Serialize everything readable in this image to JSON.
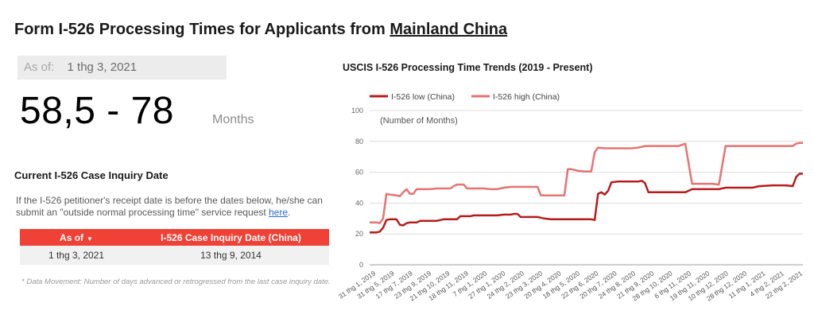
{
  "page": {
    "title_prefix": "Form I-526 Processing Times for Applicants from ",
    "title_highlight": "Mainland China"
  },
  "summary": {
    "as_of_label": "As of:",
    "as_of_value": "1 thg 3, 2021",
    "range": "58,5 - 78",
    "unit": "Months"
  },
  "inquiry": {
    "title": "Current I-526 Case Inquiry Date",
    "desc_text": "If the I-526 petitioner's receipt date is before the dates below, he/she can submit an \"outside normal processing time\" service request ",
    "link_text": "here",
    "desc_end": ".",
    "headers": [
      "As of",
      "I-526 Case Inquiry Date (China)"
    ],
    "rows": [
      [
        "1 thg 3, 2021",
        "13 thg 9, 2014"
      ]
    ],
    "footnote": "* Data Movement: Number of days advanced or retrogressed from the last case inquiry date."
  },
  "chart_data": {
    "type": "line",
    "title": "USCIS I-526 Processing Time Trends (2019 - Present)",
    "ylabel": "(Number of Months)",
    "ylim": [
      0,
      100
    ],
    "yticks": [
      0,
      20,
      40,
      60,
      80,
      100
    ],
    "grid": true,
    "legend_position": "top",
    "x_tick_labels": [
      "31 thg 1, 2019",
      "31 thg 5, 2019",
      "17 thg 7, 2019",
      "23 thg 9, 2019",
      "21 thg 10, 2019",
      "18 thg 11, 2019",
      "7 thg 1, 2020",
      "27 thg 1, 2020",
      "24 thg 2, 2020",
      "23 thg 3, 2020",
      "20 thg 4, 2020",
      "18 thg 5, 2020",
      "22 thg 6, 2020",
      "20 thg 7, 2020",
      "24 thg 8, 2020",
      "21 thg 9, 2020",
      "28 thg 10, 2020",
      "6 thg 11, 2020",
      "19 thg 11, 2020",
      "10 thg 12, 2020",
      "28 thg 12, 2020",
      "11 thg 1, 2021",
      "4 thg 2, 2021",
      "22 thg 2, 2021"
    ],
    "series": [
      {
        "name": "I-526 low (China)",
        "color": "#b71c1c",
        "points": [
          [
            0,
            21
          ],
          [
            1,
            21
          ],
          [
            1.5,
            21.5
          ],
          [
            2,
            24
          ],
          [
            2.5,
            29
          ],
          [
            3,
            29.5
          ],
          [
            4,
            29.5
          ],
          [
            4.5,
            26
          ],
          [
            5,
            25.5
          ],
          [
            5.5,
            27
          ],
          [
            6,
            27.5
          ],
          [
            7,
            27.5
          ],
          [
            7.5,
            28.5
          ],
          [
            9,
            28.5
          ],
          [
            10,
            28.5
          ],
          [
            11,
            29.5
          ],
          [
            12,
            29.5
          ],
          [
            13,
            29.5
          ],
          [
            13.5,
            31.5
          ],
          [
            15,
            31.5
          ],
          [
            15.5,
            32
          ],
          [
            17,
            32
          ],
          [
            19,
            32
          ],
          [
            20,
            32.5
          ],
          [
            21,
            32.5
          ],
          [
            21.5,
            33
          ],
          [
            22,
            33
          ],
          [
            22.5,
            31
          ],
          [
            24,
            31
          ],
          [
            25,
            31
          ],
          [
            26,
            30
          ],
          [
            27,
            29.5
          ],
          [
            29,
            29.5
          ],
          [
            30,
            29.5
          ],
          [
            31,
            29.5
          ],
          [
            32,
            29.5
          ],
          [
            33,
            29.5
          ],
          [
            33.5,
            29
          ],
          [
            34,
            46
          ],
          [
            34.5,
            47
          ],
          [
            35,
            45.5
          ],
          [
            35.5,
            48
          ],
          [
            36,
            53.5
          ],
          [
            37,
            54
          ],
          [
            39,
            54
          ],
          [
            40,
            54
          ],
          [
            40.5,
            54.5
          ],
          [
            41,
            53
          ],
          [
            41.5,
            47
          ],
          [
            42,
            47
          ],
          [
            43,
            47
          ],
          [
            44,
            47
          ],
          [
            46,
            47
          ],
          [
            47,
            47
          ],
          [
            47.5,
            48
          ],
          [
            48,
            49
          ],
          [
            50,
            49
          ],
          [
            52,
            49
          ],
          [
            53,
            50
          ],
          [
            56,
            50
          ],
          [
            57,
            50
          ],
          [
            58,
            51
          ],
          [
            60,
            51.5
          ],
          [
            62,
            51.5
          ],
          [
            63,
            51
          ],
          [
            63.5,
            57
          ],
          [
            64,
            59
          ],
          [
            64.5,
            59
          ]
        ]
      },
      {
        "name": "I-526 high (China)",
        "color": "#e57373",
        "points": [
          [
            0,
            27.5
          ],
          [
            1,
            27.5
          ],
          [
            1.5,
            27
          ],
          [
            2,
            30
          ],
          [
            2.5,
            46
          ],
          [
            3,
            45.5
          ],
          [
            4,
            45
          ],
          [
            4.5,
            44.5
          ],
          [
            5,
            47
          ],
          [
            5.5,
            49
          ],
          [
            6,
            46
          ],
          [
            6.5,
            46
          ],
          [
            7,
            49
          ],
          [
            8,
            49
          ],
          [
            9,
            49
          ],
          [
            10,
            49.5
          ],
          [
            11,
            49.5
          ],
          [
            12,
            49.5
          ],
          [
            12.5,
            51
          ],
          [
            13,
            52
          ],
          [
            14,
            52
          ],
          [
            14.5,
            49.5
          ],
          [
            15,
            49.5
          ],
          [
            16,
            49.5
          ],
          [
            17,
            49.5
          ],
          [
            18,
            49
          ],
          [
            19,
            49
          ],
          [
            20,
            50
          ],
          [
            21,
            50.5
          ],
          [
            22,
            50.5
          ],
          [
            24,
            50.5
          ],
          [
            25,
            50.5
          ],
          [
            25.5,
            45
          ],
          [
            26,
            45
          ],
          [
            28,
            45
          ],
          [
            29,
            45
          ],
          [
            29.5,
            62
          ],
          [
            30,
            62
          ],
          [
            31,
            61
          ],
          [
            32,
            60.5
          ],
          [
            33,
            60.5
          ],
          [
            33.5,
            73
          ],
          [
            34,
            76
          ],
          [
            35,
            75.5
          ],
          [
            36,
            75.5
          ],
          [
            38,
            75.5
          ],
          [
            39,
            75.5
          ],
          [
            40,
            76
          ],
          [
            41,
            77
          ],
          [
            43,
            77
          ],
          [
            46,
            77
          ],
          [
            47,
            78.5
          ],
          [
            48,
            52.5
          ],
          [
            49,
            52.5
          ],
          [
            50,
            52.5
          ],
          [
            51,
            52.5
          ],
          [
            52,
            52
          ],
          [
            53,
            77
          ],
          [
            54,
            77
          ],
          [
            55,
            77
          ],
          [
            58,
            77
          ],
          [
            60,
            77
          ],
          [
            62,
            77
          ],
          [
            63,
            77
          ],
          [
            63.5,
            78.5
          ],
          [
            64,
            79
          ],
          [
            64.5,
            79
          ]
        ]
      }
    ]
  }
}
